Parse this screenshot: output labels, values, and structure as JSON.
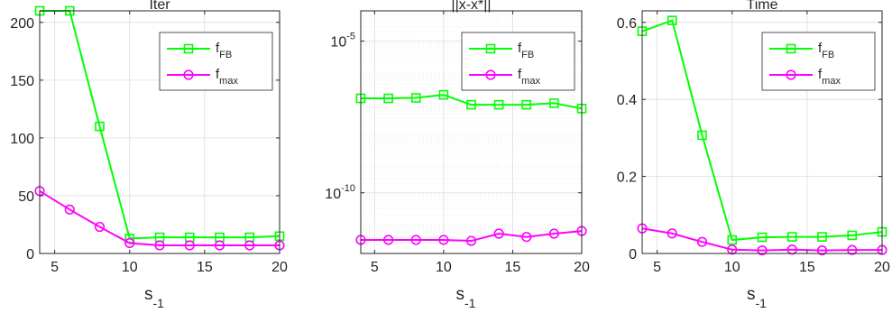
{
  "chart_data": [
    {
      "type": "line",
      "title": "Iter",
      "xlabel": "s",
      "xlabel_sub": "-1",
      "ylabel": "",
      "xlim": [
        4,
        20
      ],
      "ylim": [
        0,
        210
      ],
      "xticks": [
        5,
        10,
        15,
        20
      ],
      "yticks": [
        0,
        50,
        100,
        150,
        200
      ],
      "yscale": "linear",
      "grid": true,
      "legend_placement": "top-right",
      "x": [
        4,
        6,
        8,
        10,
        12,
        14,
        16,
        18,
        20
      ],
      "series": [
        {
          "name": "f",
          "name_sub": "FB",
          "color": "#00ff00",
          "marker": "square",
          "values": [
            210,
            210,
            110,
            13,
            14,
            14,
            14,
            14,
            15
          ]
        },
        {
          "name": "f",
          "name_sub": "max",
          "color": "#ff00ff",
          "marker": "circle",
          "values": [
            54,
            38,
            23,
            9,
            7,
            7,
            7,
            7,
            7
          ]
        }
      ]
    },
    {
      "type": "line",
      "title": "||x-x*||",
      "xlabel": "s",
      "xlabel_sub": "-1",
      "ylabel": "",
      "xlim": [
        4,
        20
      ],
      "ylim": [
        1e-12,
        0.0001
      ],
      "xticks": [
        5,
        10,
        15,
        20
      ],
      "yticks": [
        1e-10,
        1e-05
      ],
      "ytick_labels": [
        {
          "base": "10",
          "exp": "-10"
        },
        {
          "base": "10",
          "exp": "-5"
        }
      ],
      "yscale": "log",
      "grid": true,
      "legend_placement": "top-right",
      "x": [
        4,
        6,
        8,
        10,
        12,
        14,
        16,
        18,
        20
      ],
      "series": [
        {
          "name": "f",
          "name_sub": "FB",
          "color": "#00ff00",
          "marker": "square",
          "values": [
            1.3e-07,
            1.3e-07,
            1.35e-07,
            1.7e-07,
            8e-08,
            8e-08,
            8e-08,
            9e-08,
            6e-08
          ]
        },
        {
          "name": "f",
          "name_sub": "max",
          "color": "#ff00ff",
          "marker": "circle",
          "values": [
            2.8e-12,
            2.8e-12,
            2.8e-12,
            2.8e-12,
            2.6e-12,
            4.5e-12,
            3.5e-12,
            4.5e-12,
            5.5e-12
          ]
        }
      ]
    },
    {
      "type": "line",
      "title": "Time",
      "xlabel": "s",
      "xlabel_sub": "-1",
      "ylabel": "",
      "xlim": [
        4,
        20
      ],
      "ylim": [
        0,
        0.63
      ],
      "xticks": [
        5,
        10,
        15,
        20
      ],
      "yticks": [
        0,
        0.2,
        0.4,
        0.6
      ],
      "yscale": "linear",
      "grid": true,
      "legend_placement": "top-right",
      "x": [
        4,
        6,
        8,
        10,
        12,
        14,
        16,
        18,
        20
      ],
      "series": [
        {
          "name": "f",
          "name_sub": "FB",
          "color": "#00ff00",
          "marker": "square",
          "values": [
            0.577,
            0.605,
            0.307,
            0.035,
            0.042,
            0.043,
            0.043,
            0.047,
            0.056
          ]
        },
        {
          "name": "f",
          "name_sub": "max",
          "color": "#ff00ff",
          "marker": "circle",
          "values": [
            0.065,
            0.052,
            0.03,
            0.01,
            0.008,
            0.01,
            0.008,
            0.009,
            0.009
          ]
        }
      ]
    }
  ]
}
